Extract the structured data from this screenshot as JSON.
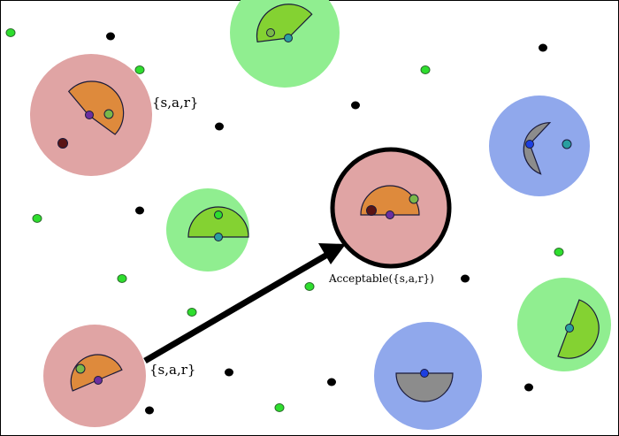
{
  "labels": {
    "sar_top": "{s,a,r}",
    "sar_bottom": "{s,a,r}",
    "acceptable": "Acceptable({s,a,r})"
  },
  "colors": {
    "red_region": "#e0a4a4",
    "green_region": "#90ee90",
    "blue_region": "#90a8ec",
    "orange_wedge": "#de8a3c",
    "green_wedge": "#84d232",
    "gray_wedge": "#8c8c8c",
    "black_dot": "#000000",
    "green_dot": "#2ede2e",
    "teal_dot": "#2a9fa0",
    "purple_dot": "#6b2fa0",
    "blue_dot": "#1c3fe0",
    "dark_red_dot": "#5a1414",
    "arrow": "#000000"
  }
}
